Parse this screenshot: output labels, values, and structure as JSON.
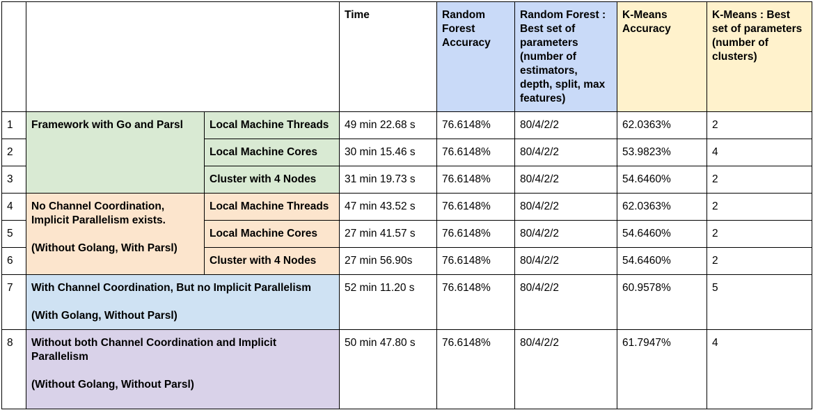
{
  "headers": {
    "time": "Time",
    "rf_accuracy": "Random Forest Accuracy",
    "rf_params": "Random Forest : Best set of parameters (number of estimators, depth, split, max features)",
    "km_accuracy": "K-Means Accuracy",
    "km_params": "K-Means : Best set of parameters (number of clusters)"
  },
  "groups": {
    "go_parsl": "Framework with Go and Parsl",
    "no_channel_line1": "No Channel Coordination, Implicit Parallelism exists.",
    "no_channel_line2": "(Without Golang, With Parsl)",
    "with_channel_line1": "With Channel Coordination, But no Implicit Parallelism",
    "with_channel_line2": "(With Golang, Without Parsl)",
    "without_both_line1": "Without both Channel Coordination and Implicit Parallelism",
    "without_both_line2": "(Without Golang, Without Parsl)"
  },
  "rows": [
    {
      "num": "1",
      "setup": "Local Machine Threads",
      "time": "49 min 22.68 s",
      "rf_acc": "76.6148%",
      "rf_params": "80/4/2/2",
      "km_acc": "62.0363%",
      "km_params": "2"
    },
    {
      "num": "2",
      "setup": "Local Machine Cores",
      "time": "30 min 15.46 s",
      "rf_acc": "76.6148%",
      "rf_params": "80/4/2/2",
      "km_acc": "53.9823%",
      "km_params": "4"
    },
    {
      "num": "3",
      "setup": "Cluster with 4 Nodes",
      "time": "31 min 19.73 s",
      "rf_acc": "76.6148%",
      "rf_params": "80/4/2/2",
      "km_acc": "54.6460%",
      "km_params": "2"
    },
    {
      "num": "4",
      "setup": "Local Machine Threads",
      "time": "47 min 43.52 s",
      "rf_acc": "76.6148%",
      "rf_params": "80/4/2/2",
      "km_acc": "62.0363%",
      "km_params": "2"
    },
    {
      "num": "5",
      "setup": "Local Machine Cores",
      "time": "27 min 41.57 s",
      "rf_acc": "76.6148%",
      "rf_params": "80/4/2/2",
      "km_acc": "54.6460%",
      "km_params": "2"
    },
    {
      "num": "6",
      "setup": "Cluster with 4 Nodes",
      "time": "27 min 56.90s",
      "rf_acc": "76.6148%",
      "rf_params": "80/4/2/2",
      "km_acc": "54.6460%",
      "km_params": "2"
    },
    {
      "num": "7",
      "setup": "",
      "time": "52 min 11.20 s",
      "rf_acc": "76.6148%",
      "rf_params": "80/4/2/2",
      "km_acc": "60.9578%",
      "km_params": "5"
    },
    {
      "num": "8",
      "setup": "",
      "time": "50 min 47.80 s",
      "rf_acc": "76.6148%",
      "rf_params": "80/4/2/2",
      "km_acc": "61.7947%",
      "km_params": "4"
    }
  ]
}
